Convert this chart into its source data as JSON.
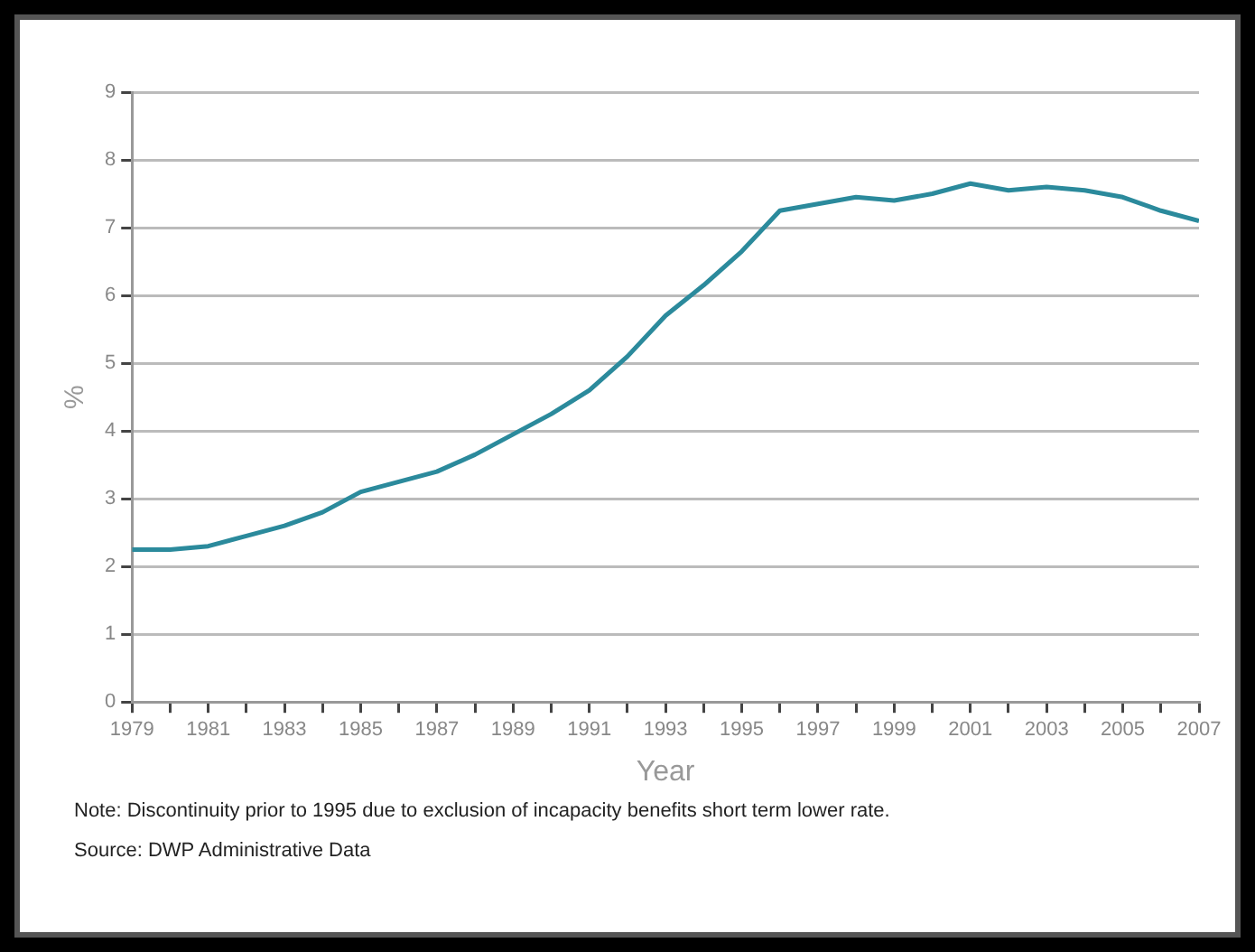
{
  "chart_data": {
    "type": "line",
    "xlabel": "Year",
    "ylabel": "%",
    "x": [
      1979,
      1980,
      1981,
      1982,
      1983,
      1984,
      1985,
      1986,
      1987,
      1988,
      1989,
      1990,
      1991,
      1992,
      1993,
      1994,
      1995,
      1996,
      1997,
      1998,
      1999,
      2000,
      2001,
      2002,
      2003,
      2004,
      2005,
      2006,
      2007
    ],
    "series": [
      {
        "color": "#2b8a9c",
        "values": [
          2.25,
          2.25,
          2.3,
          2.45,
          2.6,
          2.8,
          3.1,
          3.25,
          3.4,
          3.65,
          3.95,
          4.25,
          4.6,
          5.1,
          5.7,
          6.15,
          6.65,
          7.25,
          7.35,
          7.45,
          7.4,
          7.5,
          7.65,
          7.55,
          7.6,
          7.55,
          7.45,
          7.25,
          7.1
        ]
      }
    ],
    "xlim": [
      1979,
      2007
    ],
    "xticks": [
      1979,
      {
        "value": 1980,
        "label": null
      },
      1981,
      {
        "value": 1982,
        "label": null
      },
      1983,
      {
        "value": 1984,
        "label": null
      },
      1985,
      {
        "value": 1986,
        "label": null
      },
      1987,
      {
        "value": 1988,
        "label": null
      },
      1989,
      {
        "value": 1990,
        "label": null
      },
      1991,
      {
        "value": 1992,
        "label": null
      },
      1993,
      {
        "value": 1994,
        "label": null
      },
      1995,
      {
        "value": 1996,
        "label": null
      },
      1997,
      {
        "value": 1998,
        "label": null
      },
      1999,
      {
        "value": 2000,
        "label": null
      },
      2001,
      {
        "value": 2002,
        "label": null
      },
      2003,
      {
        "value": 2004,
        "label": null
      },
      2005,
      {
        "value": 2006,
        "label": null
      },
      2007
    ],
    "ylim": [
      0,
      9
    ],
    "yticks": [
      0,
      1,
      2,
      3,
      4,
      5,
      6,
      7,
      8,
      9
    ],
    "grid": "y",
    "legend": false,
    "marker": "none",
    "line_style": "solid",
    "annotations": [
      "Note: Discontinuity prior to 1995 due to exclusion of incapacity benefits short term lower rate.",
      "Source: DWP Administrative Data"
    ]
  }
}
